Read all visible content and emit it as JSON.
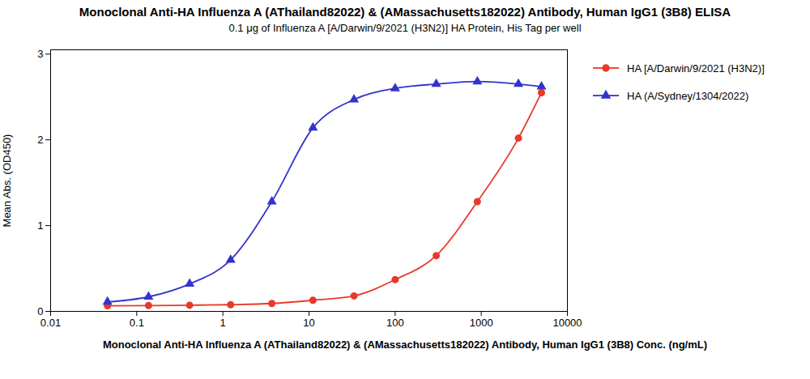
{
  "chart_data": {
    "type": "line",
    "title": "Monoclonal Anti-HA Influenza A (AThailand82022) & (AMassachusetts182022) Antibody, Human IgG1 (3B8) ELISA",
    "subtitle": "0.1 μg of Influenza A [A/Darwin/9/2021 (H3N2)] HA Protein, His Tag per well",
    "xlabel": "Monoclonal Anti-HA Influenza A (AThailand82022) & (AMassachusetts182022) Antibody, Human IgG1 (3B8) Conc. (ng/mL)",
    "ylabel": "Mean Abs. (OD450)",
    "log": "x",
    "xlim": [
      0.01,
      10000
    ],
    "xticks": [
      0.01,
      0.1,
      1,
      10,
      100,
      1000,
      10000
    ],
    "ylim": [
      0.0,
      3.05
    ],
    "yticks": [
      0,
      1,
      2,
      3
    ],
    "grid": false,
    "legend": "right",
    "x": [
      0.0457,
      0.137,
      0.411,
      1.23,
      3.7,
      11.1,
      33.3,
      100,
      300,
      900,
      2700,
      5000
    ],
    "series": [
      {
        "name": "HA [A/Darwin/9/2021 (H3N2)]",
        "color": "#E8392A",
        "marker": "circle",
        "values": [
          0.065,
          0.068,
          0.072,
          0.078,
          0.092,
          0.13,
          0.18,
          0.37,
          0.65,
          1.28,
          2.02,
          2.55
        ]
      },
      {
        "name": "HA (A/Sydney/1304/2022)",
        "color": "#3333CC",
        "marker": "triangle",
        "values": [
          0.11,
          0.17,
          0.32,
          0.6,
          1.28,
          2.14,
          2.47,
          2.6,
          2.65,
          2.68,
          2.65,
          2.62
        ]
      }
    ]
  }
}
